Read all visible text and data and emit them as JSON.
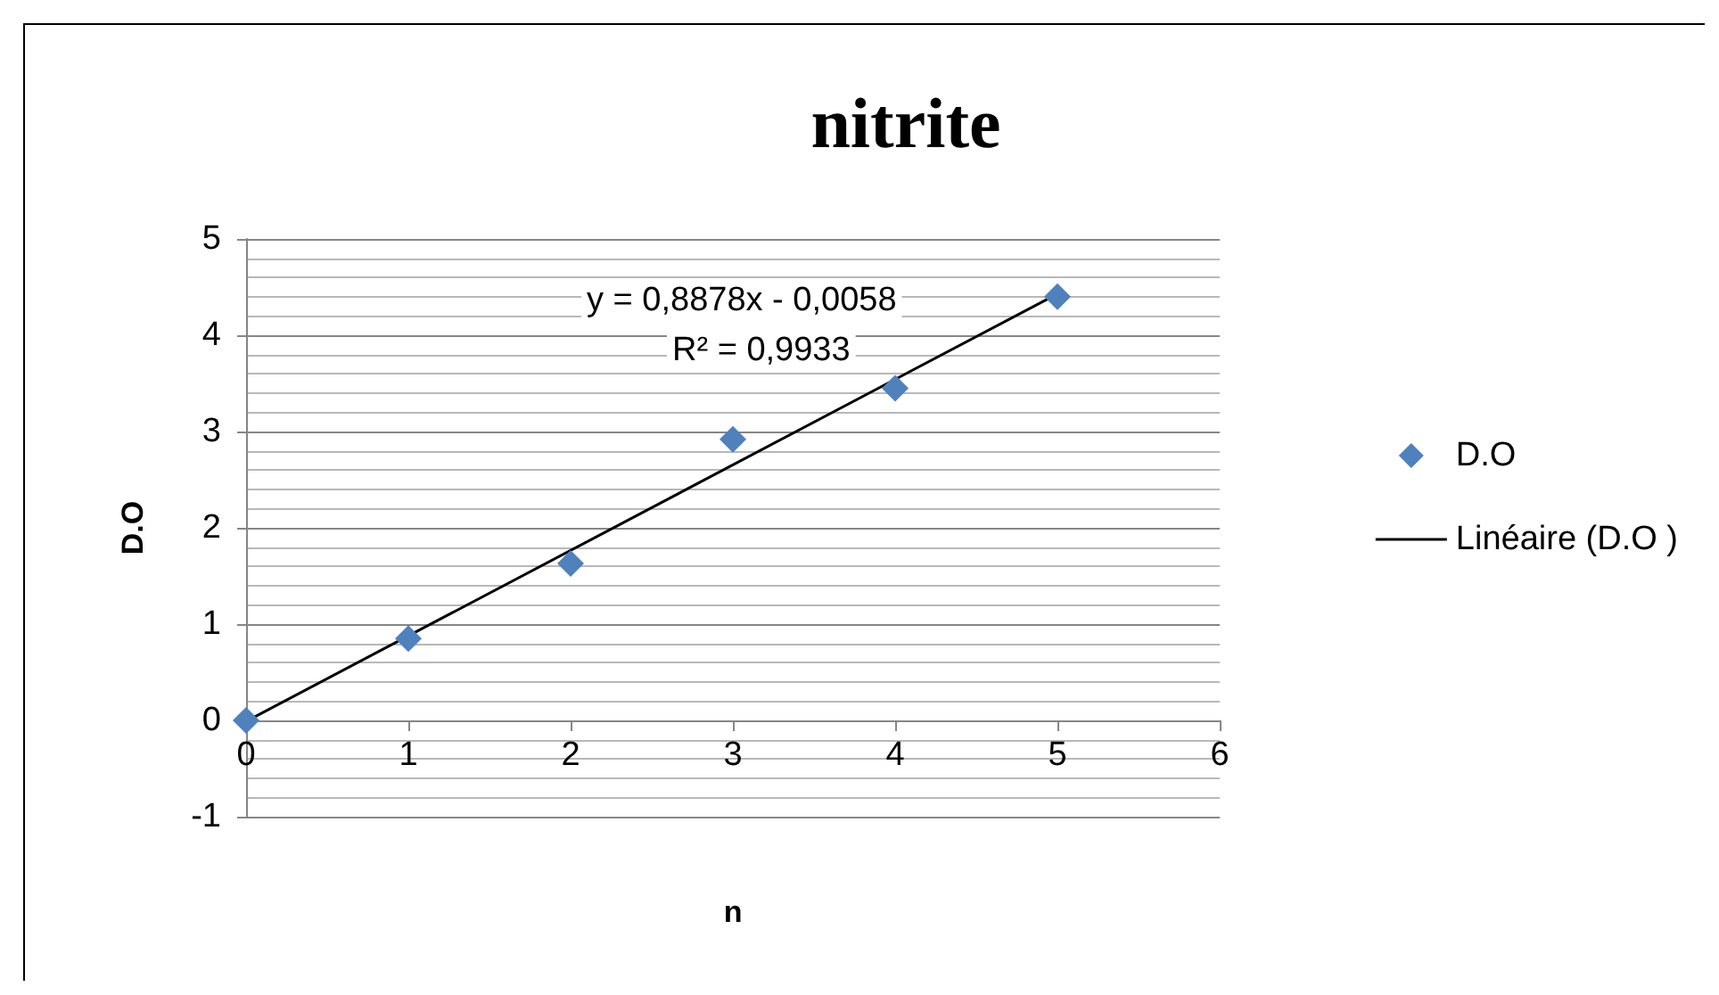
{
  "chart_data": {
    "type": "scatter",
    "title": "nitrite",
    "xlabel": "n",
    "ylabel": "D.O",
    "x": [
      0,
      1,
      2,
      3,
      4,
      5
    ],
    "series": [
      {
        "name": "D.O",
        "color": "#4f81bd",
        "values": [
          0,
          0.85,
          1.63,
          2.92,
          3.45,
          4.4
        ],
        "marker": "diamond"
      },
      {
        "name": "Linéaire (D.O )",
        "type": "line",
        "color": "#000000",
        "x": [
          0,
          5
        ],
        "values": [
          -0.01,
          4.43
        ],
        "marker": "none",
        "line_style": "solid"
      }
    ],
    "xlim": [
      0,
      6
    ],
    "xticks": [
      0,
      1,
      2,
      3,
      4,
      5,
      6
    ],
    "ylim": [
      -1,
      5
    ],
    "yticks": [
      -1,
      0,
      1,
      2,
      3,
      4,
      5
    ],
    "grid": "y",
    "legend": "right",
    "annotations": [
      "y = 0,8878x - 0,0058",
      "R² = 0,9933"
    ]
  }
}
